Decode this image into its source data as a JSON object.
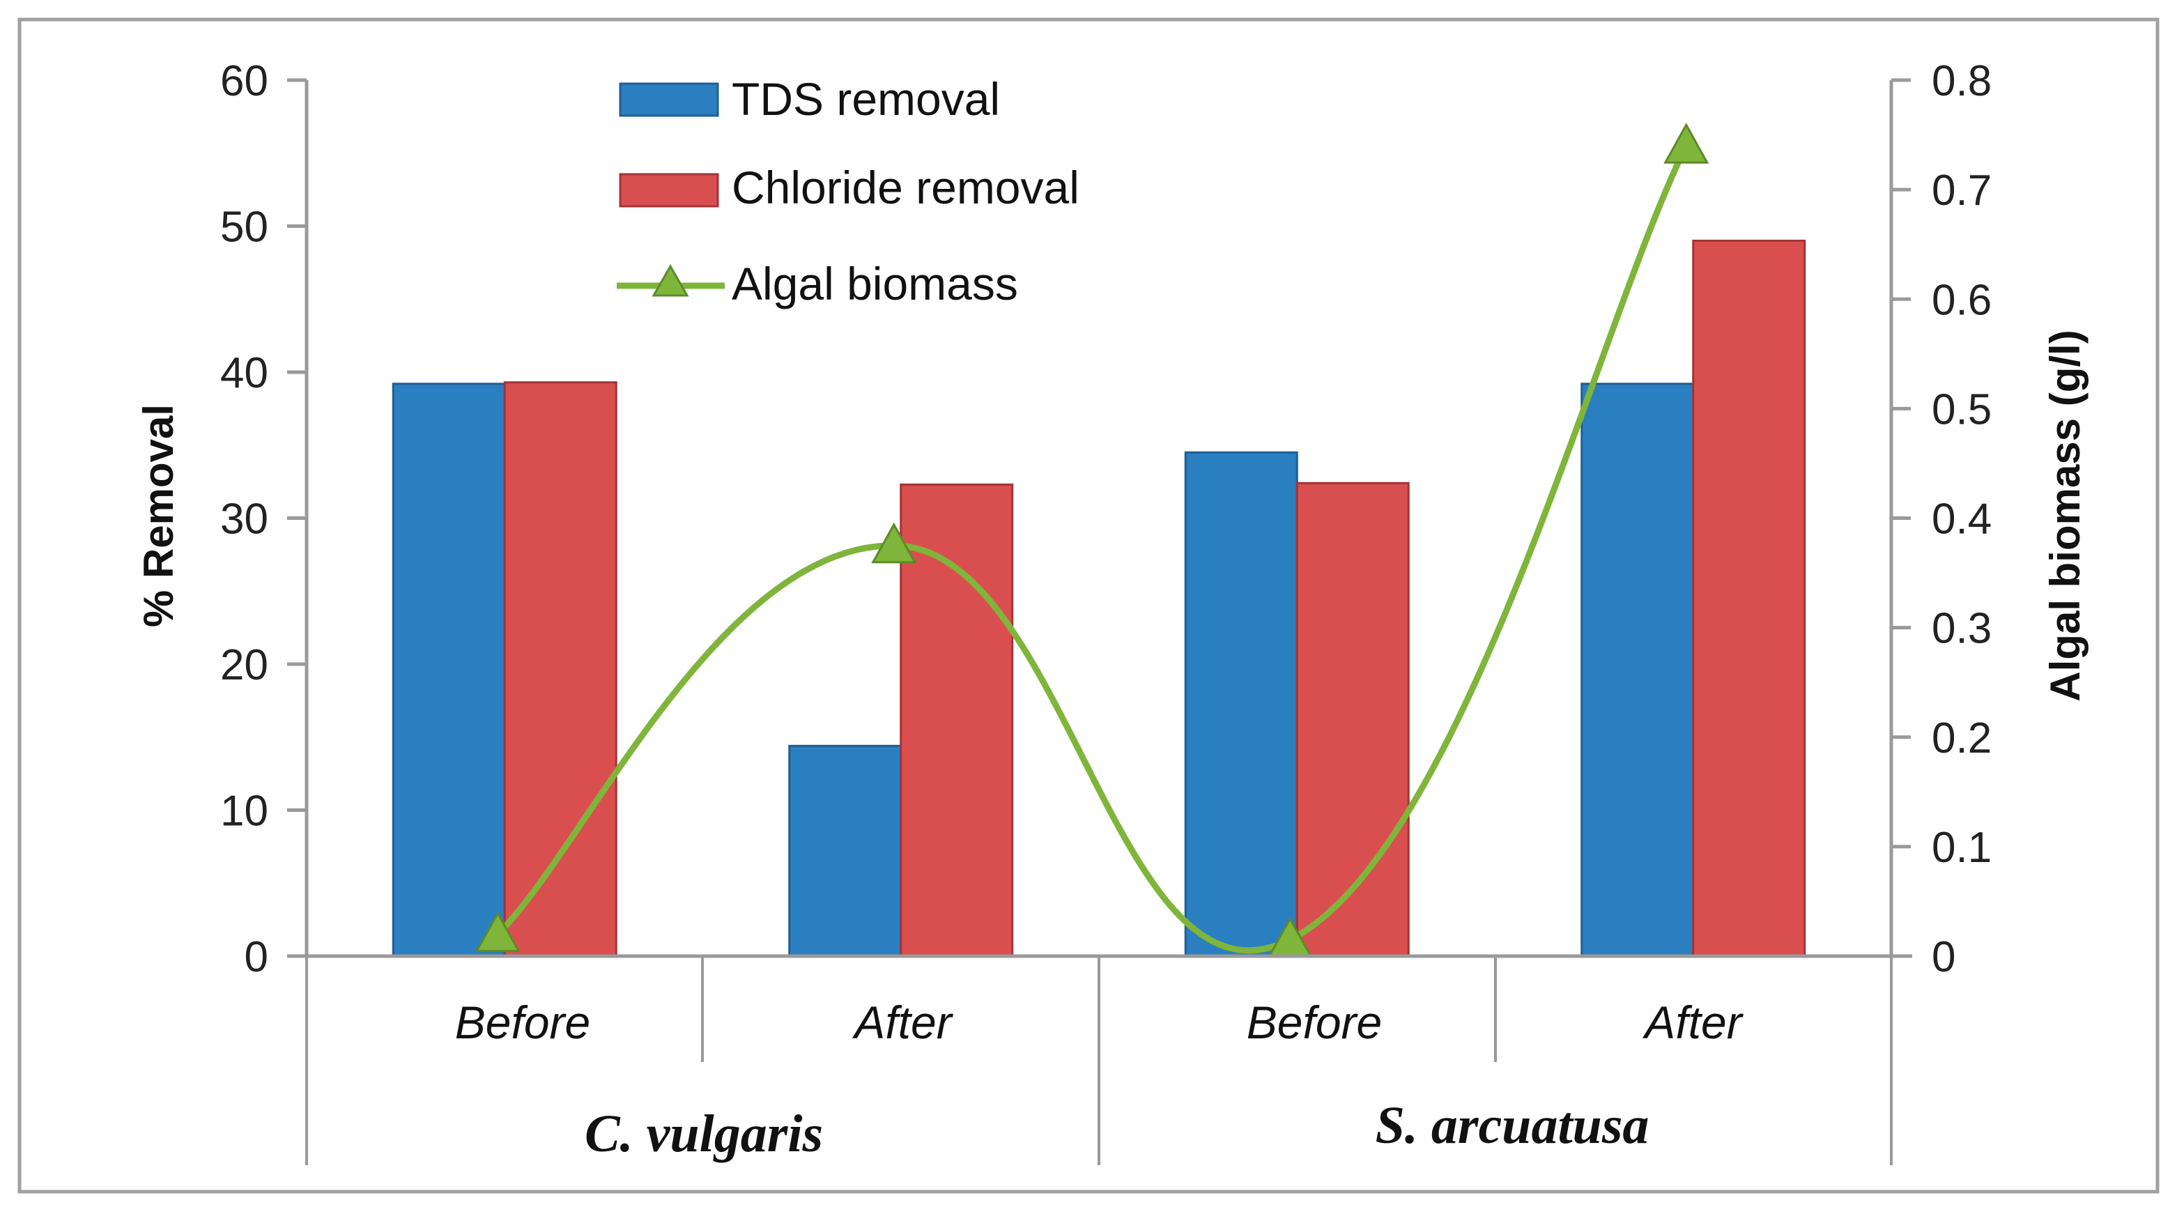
{
  "chart_data": {
    "type": "bar",
    "categories": [
      "Before",
      "After",
      "Before",
      "After"
    ],
    "groups": [
      {
        "name": "C. vulgaris",
        "categories": [
          "Before",
          "After"
        ]
      },
      {
        "name": "S. arcuatusa",
        "categories": [
          "Before",
          "After"
        ]
      }
    ],
    "series": [
      {
        "name": "TDS removal",
        "type": "bar",
        "axis": "left",
        "color": "#2a7fc1",
        "values": [
          39.2,
          14.4,
          34.5,
          39.2
        ]
      },
      {
        "name": "Chloride removal",
        "type": "bar",
        "axis": "left",
        "color": "#d94f4f",
        "values": [
          39.3,
          32.3,
          32.4,
          49
        ]
      },
      {
        "name": "Algal biomass",
        "type": "line",
        "axis": "right",
        "color": "#7fb53a",
        "marker": "triangle",
        "values": [
          0.02,
          0.375,
          0.015,
          0.74
        ]
      }
    ],
    "ylabel": "% Removal",
    "ylim": [
      0,
      60
    ],
    "yticks": [
      0,
      10,
      20,
      30,
      40,
      50,
      60
    ],
    "y2label": "Algal biomass (g/l)",
    "y2lim": [
      0,
      0.8
    ],
    "y2ticks": [
      "0",
      "0.1",
      "0.2",
      "0.3",
      "0.4",
      "0.5",
      "0.6",
      "0.7",
      "0.8"
    ],
    "legend_position": "top-left",
    "grid": false
  }
}
